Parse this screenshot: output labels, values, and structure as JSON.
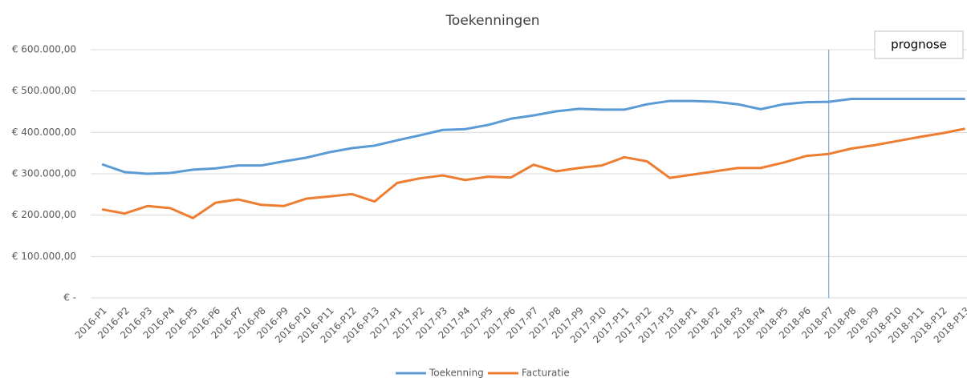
{
  "chart_data": {
    "type": "line",
    "title": "Toekenningen",
    "categories": [
      "2016-P1",
      "2016-P2",
      "2016-P3",
      "2016-P4",
      "2016-P5",
      "2016-P6",
      "2016-P7",
      "2016-P8",
      "2016-P9",
      "2016-P10",
      "2016-P11",
      "2016-P12",
      "2016-P13",
      "2017-P1",
      "2017-P2",
      "2017-P3",
      "2017-P4",
      "2017-P5",
      "2017-P6",
      "2017-P7",
      "2017-P8",
      "2017-P9",
      "2017-P10",
      "2017-P11",
      "2017-P12",
      "2017-P13",
      "2018-P1",
      "2018-P2",
      "2018-P3",
      "2018-P4",
      "2018-P5",
      "2018-P6",
      "2018-P7",
      "2018-P8",
      "2018-P9",
      "2018-P10",
      "2018-P11",
      "2018-P12",
      "2018-P13"
    ],
    "series": [
      {
        "name": "Toekenning",
        "color": "#5b9bd5",
        "values": [
          323000,
          304000,
          300000,
          302000,
          310000,
          313000,
          320000,
          320000,
          330000,
          339000,
          352000,
          362000,
          368000,
          381000,
          393000,
          406000,
          408000,
          418000,
          433000,
          441000,
          451000,
          457000,
          455000,
          455000,
          468000,
          476000,
          476000,
          474000,
          468000,
          456000,
          468000,
          473000,
          474000,
          481000,
          481000,
          481000,
          481000,
          481000,
          481000
        ]
      },
      {
        "name": "Facturatie",
        "color": "#ed7d31",
        "values": [
          214000,
          204000,
          222000,
          217000,
          193000,
          230000,
          238000,
          225000,
          222000,
          240000,
          245000,
          251000,
          233000,
          278000,
          289000,
          296000,
          285000,
          293000,
          291000,
          322000,
          306000,
          314000,
          320000,
          340000,
          330000,
          290000,
          298000,
          306000,
          314000,
          314000,
          327000,
          343000,
          348000,
          361000,
          369000,
          379000,
          389000,
          398000,
          409000
        ]
      }
    ],
    "ylim": [
      0,
      600000
    ],
    "yticks": [
      {
        "value": 0,
        "label": "€ -"
      },
      {
        "value": 100000,
        "label": "€ 100.000,00"
      },
      {
        "value": 200000,
        "label": "€ 200.000,00"
      },
      {
        "value": 300000,
        "label": "€ 300.000,00"
      },
      {
        "value": 400000,
        "label": "€ 400.000,00"
      },
      {
        "value": 500000,
        "label": "€ 500.000,00"
      },
      {
        "value": 600000,
        "label": "€ 600.000,00"
      }
    ],
    "grid": true,
    "annotation": "prognose",
    "prognose_from": "2018-P7",
    "legend": "bottom"
  }
}
